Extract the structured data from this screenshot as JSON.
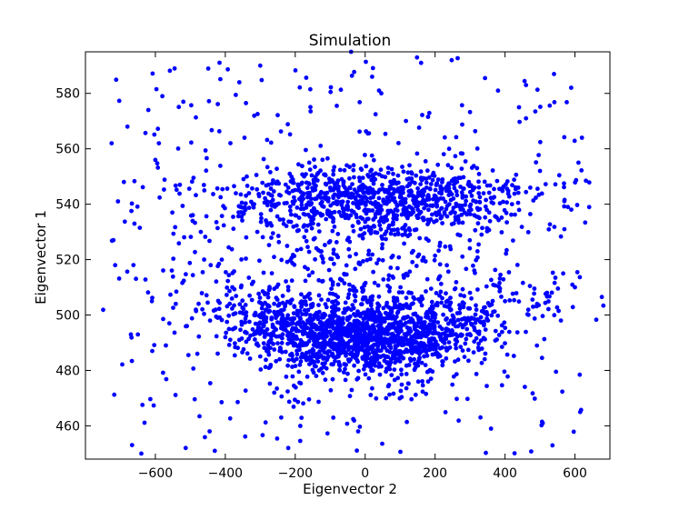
{
  "chart_data": {
    "type": "scatter",
    "title": "Simulation",
    "xlabel": "Eigenvector 2",
    "ylabel": "Eigenvector 1",
    "xlim": [
      -800,
      700
    ],
    "ylim": [
      448,
      595
    ],
    "xticks": [
      -600,
      -400,
      -200,
      0,
      200,
      400,
      600
    ],
    "yticks": [
      460,
      480,
      500,
      520,
      540,
      560,
      580
    ],
    "xtick_labels": [
      "−600",
      "−400",
      "−200",
      "0",
      "200",
      "400",
      "600"
    ],
    "ytick_labels": [
      "460",
      "480",
      "500",
      "520",
      "540",
      "560",
      "580"
    ],
    "grid": false,
    "marker_color": "#0000ff",
    "series": [
      {
        "points_sample": [
          [
            -725,
            562
          ],
          [
            -720,
            527
          ],
          [
            -715,
            518
          ],
          [
            -690,
            548
          ],
          [
            -680,
            568
          ],
          [
            -670,
            493
          ],
          [
            -660,
            533
          ],
          [
            -650,
            493
          ],
          [
            -640,
            450
          ],
          [
            -620,
            574
          ],
          [
            -610,
            505
          ],
          [
            -600,
            556
          ],
          [
            -590,
            562
          ],
          [
            -580,
            579
          ],
          [
            -570,
            489
          ],
          [
            -560,
            497
          ],
          [
            -545,
            589
          ],
          [
            -530,
            547
          ],
          [
            -520,
            577
          ],
          [
            -510,
            496
          ],
          [
            -480,
            486
          ],
          [
            -470,
            530
          ],
          [
            -460,
            545
          ],
          [
            -445,
            458
          ],
          [
            -430,
            451
          ],
          [
            -410,
            520
          ],
          [
            -400,
            492
          ],
          [
            -380,
            510
          ],
          [
            -360,
            584
          ],
          [
            -340,
            528
          ],
          [
            -320,
            512
          ],
          [
            -300,
            590
          ],
          [
            -290,
            498
          ],
          [
            -280,
            541
          ],
          [
            -260,
            472
          ],
          [
            -240,
            463
          ],
          [
            -220,
            452
          ],
          [
            -200,
            536
          ],
          [
            -180,
            486
          ],
          [
            -160,
            555
          ],
          [
            -140,
            478
          ],
          [
            -120,
            519
          ],
          [
            -100,
            494
          ],
          [
            -80,
            540
          ],
          [
            -60,
            487
          ],
          [
            -40,
            595
          ],
          [
            -20,
            458
          ],
          [
            0,
            490
          ],
          [
            10,
            544
          ],
          [
            20,
            586
          ],
          [
            40,
            496
          ],
          [
            60,
            470
          ],
          [
            80,
            537
          ],
          [
            100,
            491
          ],
          [
            120,
            549
          ],
          [
            140,
            484
          ],
          [
            160,
            591
          ],
          [
            180,
            476
          ],
          [
            200,
            542
          ],
          [
            220,
            495
          ],
          [
            240,
            560
          ],
          [
            260,
            488
          ],
          [
            280,
            538
          ],
          [
            300,
            508
          ],
          [
            320,
            553
          ],
          [
            340,
            497
          ],
          [
            360,
            459
          ],
          [
            380,
            581
          ],
          [
            400,
            505
          ],
          [
            420,
            540
          ],
          [
            440,
            575
          ],
          [
            460,
            583
          ],
          [
            480,
            503
          ],
          [
            500,
            552
          ],
          [
            520,
            508
          ],
          [
            540,
            587
          ],
          [
            560,
            498
          ],
          [
            580,
            539
          ],
          [
            600,
            510
          ],
          [
            610,
            555
          ],
          [
            615,
            465
          ],
          [
            620,
            564
          ]
        ]
      }
    ]
  }
}
